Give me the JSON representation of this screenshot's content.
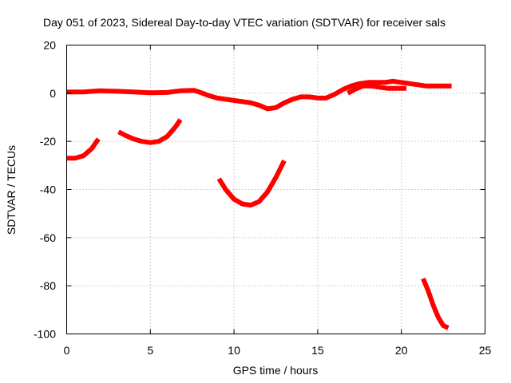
{
  "chart_data": {
    "type": "line",
    "title": "Day 051 of 2023, Sidereal Day-to-day VTEC variation (SDTVAR) for receiver sals",
    "xlabel": "GPS time / hours",
    "ylabel": "SDTVAR / TECUs",
    "xlim": [
      0,
      25
    ],
    "ylim": [
      -100,
      20
    ],
    "xticks": [
      0,
      5,
      10,
      15,
      20,
      25
    ],
    "yticks": [
      -100,
      -80,
      -60,
      -40,
      -20,
      0,
      20
    ],
    "xtick_labels": [
      "0",
      "5",
      "10",
      "15",
      "20",
      "25"
    ],
    "ytick_labels": [
      "-100",
      "-80",
      "-60",
      "-40",
      "-20",
      "0",
      "20"
    ],
    "grid": true,
    "legend": false,
    "series_color": "#ff0000",
    "series": [
      {
        "name": "main",
        "points": [
          [
            0,
            0.5
          ],
          [
            1,
            0.5
          ],
          [
            2,
            1
          ],
          [
            3,
            0.8
          ],
          [
            4,
            0.5
          ],
          [
            5,
            0.2
          ],
          [
            6,
            0.3
          ],
          [
            6.8,
            1
          ],
          [
            7.6,
            1.2
          ],
          [
            8,
            0.3
          ],
          [
            8.5,
            -1
          ],
          [
            9,
            -2
          ],
          [
            9.5,
            -2.5
          ],
          [
            10,
            -3
          ],
          [
            10.5,
            -3.5
          ],
          [
            11,
            -4
          ],
          [
            11.5,
            -5
          ],
          [
            12,
            -6.5
          ],
          [
            12.5,
            -6
          ],
          [
            13,
            -4
          ],
          [
            13.5,
            -2.5
          ],
          [
            14,
            -1.5
          ],
          [
            14.5,
            -1.5
          ],
          [
            15,
            -2
          ],
          [
            15.5,
            -2
          ],
          [
            16,
            -0.5
          ],
          [
            16.5,
            1.5
          ],
          [
            17,
            3
          ],
          [
            17.5,
            4
          ],
          [
            18,
            4.5
          ],
          [
            18.5,
            4.5
          ],
          [
            19,
            4.5
          ],
          [
            19.5,
            5
          ],
          [
            20,
            4.5
          ],
          [
            20.5,
            4
          ],
          [
            21,
            3.5
          ],
          [
            21.5,
            3
          ],
          [
            22,
            3
          ],
          [
            22.5,
            3
          ],
          [
            23,
            3
          ]
        ]
      },
      {
        "name": "main-lower-branch",
        "points": [
          [
            16.8,
            0
          ],
          [
            17.2,
            1.5
          ],
          [
            17.7,
            3
          ],
          [
            18.2,
            3
          ],
          [
            18.7,
            2.5
          ],
          [
            19.2,
            2
          ],
          [
            19.7,
            2
          ],
          [
            20.3,
            2
          ]
        ]
      },
      {
        "name": "arc-1",
        "points": [
          [
            0,
            -27
          ],
          [
            0.5,
            -27
          ],
          [
            1,
            -26
          ],
          [
            1.5,
            -23
          ],
          [
            1.9,
            -19
          ]
        ]
      },
      {
        "name": "arc-2",
        "points": [
          [
            3.1,
            -16
          ],
          [
            3.5,
            -17.5
          ],
          [
            4,
            -19
          ],
          [
            4.5,
            -20
          ],
          [
            5,
            -20.5
          ],
          [
            5.5,
            -20
          ],
          [
            6,
            -18
          ],
          [
            6.5,
            -14
          ],
          [
            6.8,
            -11
          ]
        ]
      },
      {
        "name": "arc-3",
        "points": [
          [
            9.1,
            -35.5
          ],
          [
            9.5,
            -40
          ],
          [
            10,
            -44
          ],
          [
            10.5,
            -46
          ],
          [
            11,
            -46.5
          ],
          [
            11.5,
            -45
          ],
          [
            12,
            -41
          ],
          [
            12.5,
            -35
          ],
          [
            13,
            -28
          ]
        ]
      },
      {
        "name": "arc-4",
        "points": [
          [
            21.3,
            -77
          ],
          [
            21.6,
            -82
          ],
          [
            21.9,
            -88
          ],
          [
            22.2,
            -93
          ],
          [
            22.5,
            -96.5
          ],
          [
            22.8,
            -97.5
          ]
        ]
      }
    ]
  }
}
